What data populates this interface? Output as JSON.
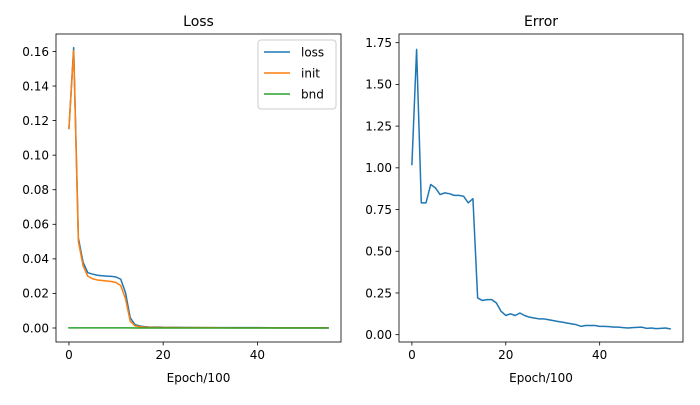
{
  "chart_data": [
    {
      "type": "line",
      "title": "Loss",
      "xlabel": "Epoch/100",
      "ylabel": "",
      "xlim": [
        -2.75,
        57.75
      ],
      "ylim": [
        -0.0081,
        0.1701
      ],
      "xticks": [
        0,
        20,
        40
      ],
      "yticks": [
        0.0,
        0.02,
        0.04,
        0.06,
        0.08,
        0.1,
        0.12,
        0.14,
        0.16
      ],
      "ytick_labels": [
        "0.00",
        "0.02",
        "0.04",
        "0.06",
        "0.08",
        "0.10",
        "0.12",
        "0.14",
        "0.16"
      ],
      "legend": {
        "placement": "top-right"
      },
      "series": [
        {
          "name": "loss",
          "color": "#1f77b4",
          "x": [
            0,
            1,
            2,
            3,
            4,
            5,
            6,
            7,
            8,
            9,
            10,
            11,
            12,
            13,
            14,
            15,
            16,
            17,
            18,
            19,
            20,
            25,
            30,
            35,
            40,
            45,
            50,
            55
          ],
          "y": [
            0.1155,
            0.1622,
            0.052,
            0.038,
            0.032,
            0.0312,
            0.0305,
            0.0302,
            0.03,
            0.0299,
            0.0295,
            0.0282,
            0.0205,
            0.006,
            0.002,
            0.0012,
            0.0008,
            0.0006,
            0.0005,
            0.0005,
            0.0004,
            0.0003,
            0.0002,
            0.0002,
            0.0002,
            0.0001,
            0.0001,
            0.0001
          ]
        },
        {
          "name": "init",
          "color": "#ff7f0e",
          "x": [
            0,
            1,
            2,
            3,
            4,
            5,
            6,
            7,
            8,
            9,
            10,
            11,
            12,
            13,
            14,
            15,
            16,
            17,
            18,
            19,
            20,
            25,
            30,
            35,
            40,
            45,
            50,
            55
          ],
          "y": [
            0.1155,
            0.1605,
            0.05,
            0.036,
            0.03,
            0.0285,
            0.0278,
            0.0275,
            0.0272,
            0.0269,
            0.0263,
            0.0245,
            0.017,
            0.004,
            0.0013,
            0.0007,
            0.0005,
            0.0004,
            0.0003,
            0.0003,
            0.0003,
            0.0002,
            0.0002,
            0.0001,
            0.0001,
            0.0001,
            0.0001,
            0.0001
          ]
        },
        {
          "name": "bnd",
          "color": "#2ca02c",
          "x": [
            0,
            5,
            10,
            15,
            20,
            30,
            40,
            50,
            55
          ],
          "y": [
            0.0001,
            0.0001,
            0.0001,
            0.0,
            0.0,
            0.0,
            0.0,
            0.0,
            0.0
          ]
        }
      ]
    },
    {
      "type": "line",
      "title": "Error",
      "xlabel": "Epoch/100",
      "ylabel": "",
      "xlim": [
        -2.75,
        57.75
      ],
      "ylim": [
        -0.0439,
        1.8021
      ],
      "xticks": [
        0,
        20,
        40
      ],
      "yticks": [
        0.0,
        0.25,
        0.5,
        0.75,
        1.0,
        1.25,
        1.5,
        1.75
      ],
      "ytick_labels": [
        "0.00",
        "0.25",
        "0.50",
        "0.75",
        "1.00",
        "1.25",
        "1.50",
        "1.75"
      ],
      "series": [
        {
          "name": "",
          "color": "#1f77b4",
          "x": [
            0,
            1,
            2,
            3,
            4,
            5,
            6,
            7,
            8,
            9,
            10,
            11,
            12,
            13,
            14,
            15,
            16,
            17,
            18,
            19,
            20,
            21,
            22,
            23,
            24,
            25,
            26,
            27,
            28,
            29,
            30,
            31,
            32,
            33,
            34,
            35,
            36,
            37,
            38,
            39,
            40,
            41,
            42,
            43,
            44,
            45,
            46,
            47,
            48,
            49,
            50,
            51,
            52,
            53,
            54,
            55
          ],
          "y": [
            1.02,
            1.71,
            0.79,
            0.79,
            0.9,
            0.88,
            0.84,
            0.85,
            0.845,
            0.835,
            0.835,
            0.83,
            0.79,
            0.815,
            0.22,
            0.205,
            0.21,
            0.21,
            0.19,
            0.14,
            0.115,
            0.125,
            0.115,
            0.13,
            0.115,
            0.105,
            0.1,
            0.095,
            0.095,
            0.09,
            0.085,
            0.08,
            0.075,
            0.07,
            0.065,
            0.06,
            0.05,
            0.055,
            0.055,
            0.055,
            0.05,
            0.05,
            0.048,
            0.045,
            0.045,
            0.042,
            0.04,
            0.042,
            0.044,
            0.045,
            0.038,
            0.04,
            0.036,
            0.038,
            0.04,
            0.035
          ]
        }
      ]
    }
  ]
}
